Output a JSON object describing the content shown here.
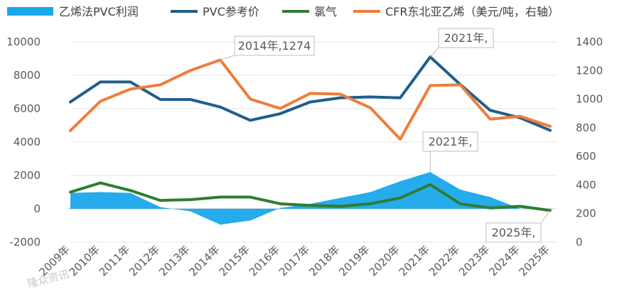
{
  "chart_data": {
    "type": "line",
    "categories": [
      "2009年",
      "2010年",
      "2011年",
      "2012年",
      "2013年",
      "2014年",
      "2015年",
      "2016年",
      "2017年",
      "2018年",
      "2019年",
      "2020年",
      "2021年",
      "2022年",
      "2023年",
      "2024年",
      "2025年"
    ],
    "series": [
      {
        "name": "乙烯法PVC利润",
        "kind": "area",
        "axis": "left",
        "color": "#1aa7ec",
        "values": [
          950,
          1000,
          950,
          100,
          -150,
          -950,
          -700,
          50,
          300,
          650,
          1000,
          1650,
          2200,
          1150,
          700,
          0,
          -50
        ]
      },
      {
        "name": "PVC参考价",
        "kind": "line",
        "axis": "left",
        "color": "#1f5f8b",
        "values": [
          6400,
          7600,
          7600,
          6550,
          6550,
          6100,
          5300,
          5700,
          6400,
          6650,
          6700,
          6650,
          9100,
          7450,
          5900,
          5450,
          4700
        ]
      },
      {
        "name": "氯气",
        "kind": "line",
        "axis": "left",
        "color": "#2e7d32",
        "values": [
          1000,
          1550,
          1100,
          500,
          550,
          700,
          700,
          300,
          200,
          150,
          300,
          650,
          1450,
          300,
          50,
          150,
          -100
        ]
      },
      {
        "name": "CFR东北亚乙烯（美元/吨，右轴）",
        "kind": "line",
        "axis": "right",
        "color": "#f07c3c",
        "values": [
          780,
          985,
          1070,
          1100,
          1200,
          1274,
          1000,
          935,
          1040,
          1035,
          940,
          720,
          1095,
          1100,
          860,
          880,
          810
        ]
      }
    ],
    "yAxisLeft": {
      "min": -2000,
      "max": 10000,
      "ticks": [
        "-2000",
        "0",
        "2000",
        "4000",
        "6000",
        "8000",
        "10000"
      ]
    },
    "yAxisRight": {
      "min": 0,
      "max": 1400,
      "ticks": [
        "0",
        "200",
        "400",
        "600",
        "800",
        "1000",
        "1200",
        "1400"
      ]
    },
    "legend_position": "top",
    "annotations": [
      {
        "text": "2014年,1274",
        "series": 3,
        "index": 5
      },
      {
        "text": "2021年,",
        "series": 1,
        "index": 12
      },
      {
        "text": "2021年,",
        "series": 0,
        "index": 12
      },
      {
        "text": "2025年,",
        "series": 2,
        "index": 16
      }
    ]
  },
  "watermark": "隆众资讯"
}
